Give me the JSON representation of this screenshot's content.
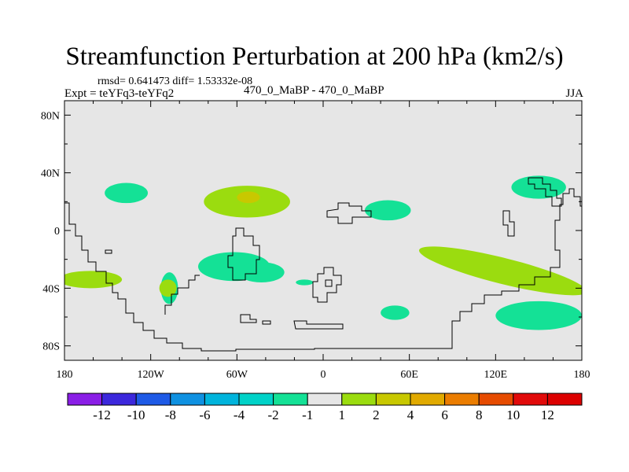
{
  "chart_data": {
    "type": "contour-map",
    "title": "Streamfunction Perturbation at 200 hPa (km2/s)",
    "stats": "rmsd= 0.641473 diff= 1.53332e-08",
    "experiment": "Expt = teYFq3-teYFq2",
    "case": "470_0_MaBP - 470_0_MaBP",
    "season": "JJA",
    "x_ticks": [
      "180",
      "120W",
      "60W",
      "0",
      "60E",
      "120E",
      "180"
    ],
    "x_tick_values": [
      -180,
      -120,
      -60,
      0,
      60,
      120,
      180
    ],
    "y_ticks": [
      "80N",
      "40N",
      "0",
      "40S",
      "80S"
    ],
    "y_tick_values": [
      80,
      40,
      0,
      -40,
      -80
    ],
    "xlim": [
      -180,
      180
    ],
    "ylim": [
      -90,
      90
    ],
    "colorbar": {
      "levels": [
        "-12",
        "-10",
        "-8",
        "-6",
        "-4",
        "-2",
        "-1",
        "1",
        "2",
        "4",
        "6",
        "8",
        "10",
        "12"
      ],
      "colors": [
        "#8a1ee6",
        "#3c28dc",
        "#1e5ae6",
        "#0f91e1",
        "#00b4dc",
        "#00d2c8",
        "#14e196",
        "#e6e6e6",
        "#9bdc0f",
        "#c8c800",
        "#e1aa00",
        "#eb7d00",
        "#e64b00",
        "#e10a0a",
        "#dc0000"
      ]
    },
    "regions": [
      {
        "name": "positive-cell-north-atlantic",
        "lon": -53,
        "lat": 20,
        "rlon": 30,
        "rlat": 11,
        "color": "#9bdc0f"
      },
      {
        "name": "positive-core-north-atlantic",
        "lon": -52,
        "lat": 23,
        "rlon": 8,
        "rlat": 4,
        "color": "#c8c800"
      },
      {
        "name": "negative-cell-north-pacific",
        "lon": -137,
        "lat": 26,
        "rlon": 15,
        "rlat": 7,
        "color": "#14e196"
      },
      {
        "name": "negative-cell-west-asia",
        "lon": 45,
        "lat": 14,
        "rlon": 16,
        "rlat": 7,
        "color": "#14e196"
      },
      {
        "name": "negative-cell-northwest-pacific",
        "lon": 150,
        "lat": 30,
        "rlon": 19,
        "rlat": 8,
        "color": "#14e196"
      },
      {
        "name": "negative-cell-south-america",
        "lon": -62,
        "lat": -25,
        "rlon": 25,
        "rlat": 10,
        "color": "#14e196"
      },
      {
        "name": "negative-cell-south-america-east",
        "lon": -43,
        "lat": -29,
        "rlon": 16,
        "rlat": 7,
        "color": "#14e196"
      },
      {
        "name": "negative-cell-south-atlantic-small",
        "lon": -13,
        "lat": -36,
        "rlon": 6,
        "rlat": 2,
        "color": "#14e196"
      },
      {
        "name": "negative-cell-south-indian",
        "lon": 50,
        "lat": -57,
        "rlon": 10,
        "rlat": 5,
        "color": "#14e196"
      },
      {
        "name": "negative-cell-south-pacific-east",
        "lon": -107,
        "lat": -40,
        "rlon": 6,
        "rlat": 11,
        "color": "#14e196"
      },
      {
        "name": "negative-cell-southwest-pacific",
        "lon": 150,
        "lat": -59,
        "rlon": 30,
        "rlat": 10,
        "color": "#14e196"
      },
      {
        "name": "positive-cell-south-pacific",
        "lon": -162,
        "lat": -34,
        "rlon": 22,
        "rlat": 6,
        "color": "#9bdc0f"
      },
      {
        "name": "positive-cell-southeast-pacific",
        "lon": -108,
        "lat": -40,
        "rlon": 6,
        "rlat": 6,
        "color": "#9bdc0f"
      },
      {
        "name": "positive-band-australia",
        "lon": 125,
        "lat": -28,
        "rlon": 60,
        "rlat": 9,
        "rotate": 14,
        "color": "#9bdc0f"
      }
    ]
  }
}
